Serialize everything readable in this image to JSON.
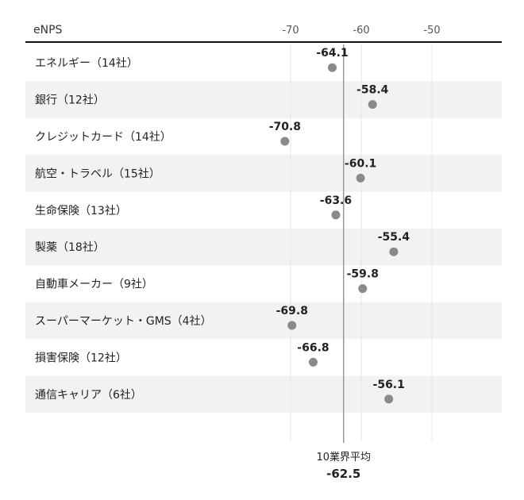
{
  "chart_data": {
    "type": "scatter",
    "column_header": "eNPS",
    "categories": [
      "エネルギー（14社）",
      "銀行（12社）",
      "クレジットカード（14社）",
      "航空・トラベル（15社）",
      "生命保険（13社）",
      "製薬（18社）",
      "自動車メーカー（9社）",
      "スーパーマーケット・GMS（4社）",
      "損害保険（12社）",
      "通信キャリア（6社）"
    ],
    "values": [
      -64.1,
      -58.4,
      -70.8,
      -60.1,
      -63.6,
      -55.4,
      -59.8,
      -69.8,
      -66.8,
      -56.1
    ],
    "value_labels": [
      "-64.1",
      "-58.4",
      "-70.8",
      "-60.1",
      "-63.6",
      "-55.4",
      "-59.8",
      "-69.8",
      "-66.8",
      "-56.1"
    ],
    "x_ticks": [
      -70,
      -60,
      -50
    ],
    "x_tick_labels": [
      "-70",
      "-60",
      "-50"
    ],
    "reference_line": {
      "label": "10業界平均",
      "value": -62.5,
      "value_label": "-62.5"
    },
    "colors": {
      "dot": "#8a8a8a",
      "stripe": "#f4f2f0",
      "ref_line": "#999999",
      "header_rule": "#111111"
    }
  }
}
